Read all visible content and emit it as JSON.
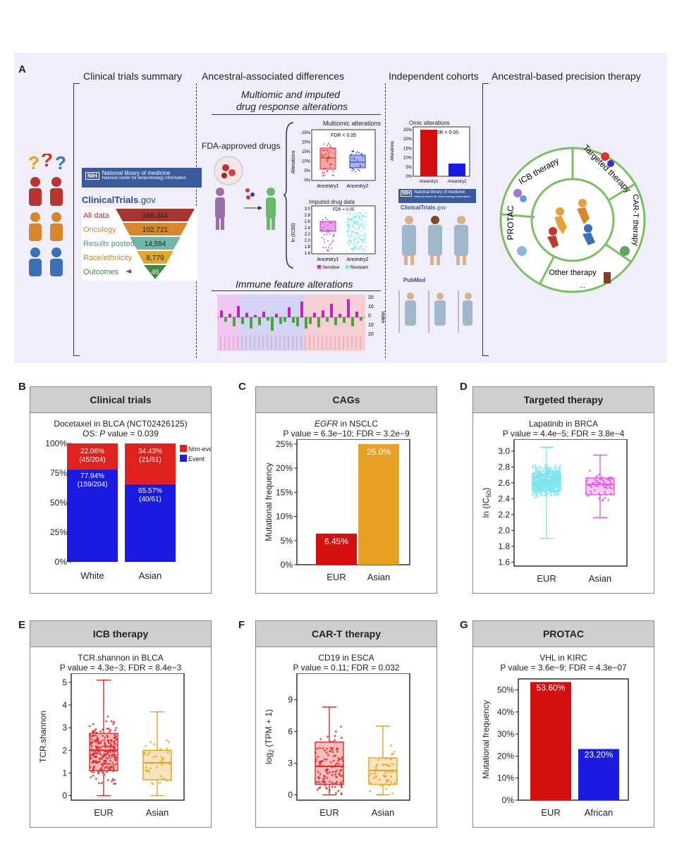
{
  "panel_a": {
    "letter": "A",
    "sections": {
      "clinical_trials_summary": "Clinical trials summary",
      "ancestral_differences": "Ancestral-associated differences",
      "independent_cohorts": "Independent cohorts",
      "precision_therapy": "Ancestral-based precision therapy"
    },
    "multiomic_title_line1": "Multiomic and imputed",
    "multiomic_title_line2": "drug response alterations",
    "fda_label": "FDA-approved drugs",
    "multiomic_alterations": "Multiomic alterations",
    "fdr_label": "FDR < 0.05",
    "fdr_label2": "FDR = 0.05",
    "alterations_axis": "Alterations",
    "pct_ticks": [
      "25%",
      "20%",
      "15%",
      "10%",
      "5%",
      "0%"
    ],
    "ancestry1": "Ancestry1",
    "ancestry2": "Ancestry2",
    "imputed_drug_data": "Imputed drug data",
    "ic50_axis": "ln (IC50)",
    "ic50_ticks": [
      "3.0",
      "2.8",
      "2.6",
      "2.4",
      "2.2",
      "2.0",
      "1.8",
      "1.6"
    ],
    "legend_sensitive": "Sensitive",
    "legend_resistant": "Resistant",
    "immune_title": "Immune feature alterations",
    "index_label": "Index",
    "immune_ticks": [
      "20",
      "10",
      "0",
      "10",
      "20"
    ],
    "nih_line1": "National library of medicine",
    "nih_line2": "National center for biotechnology information",
    "nih_badge": "NIH",
    "clinicaltrials_bold": "ClinicalTrials",
    "clinicaltrials_rest": ".gov",
    "funnel": [
      {
        "label": "All data",
        "value": "488,344",
        "color": "#a8342e"
      },
      {
        "label": "Oncology",
        "value": "102,721",
        "color": "#d6862c"
      },
      {
        "label": "Results posted",
        "value": "14,594",
        "color": "#6fb7a8"
      },
      {
        "label": "Race/ethnicity",
        "value": "8,779",
        "color": "#e0a92e"
      },
      {
        "label": "Outcomes",
        "value": "46",
        "color": "#3c8a3c"
      }
    ],
    "omic_alterations": "Omic alterations",
    "omic_fdr": "FDR < 0.05",
    "omic_ticks": [
      "25%",
      "20%",
      "15%",
      "10%",
      "5%",
      "0%"
    ],
    "pubmed": "PubMed",
    "wheel": {
      "icb": "ICB therapy",
      "targeted": "Targeted therapy",
      "cart": "CAR-T therapy",
      "protac": "PROTAC",
      "other": "Other therapy",
      "ellipsis": "..."
    }
  },
  "panel_b": {
    "letter": "B",
    "title": "Clinical trials",
    "subtitle1": "Docetaxel in BLCA (NCT02426125)",
    "subtitle2_prefix": "OS: ",
    "subtitle2_p": "P",
    "subtitle2_rest": " value = 0.039",
    "colors": {
      "non_event": "#e0221e",
      "event": "#1a1ae0"
    },
    "chart_data": {
      "type": "bar",
      "stacked": true,
      "categories": [
        "White",
        "Asian"
      ],
      "series": [
        {
          "name": "Event",
          "values": [
            77.94,
            65.57
          ],
          "labels": [
            "77.94%",
            "65.57%"
          ],
          "counts": [
            "(159/204)",
            "(40/61)"
          ]
        },
        {
          "name": "Non-event",
          "values": [
            22.06,
            34.43
          ],
          "labels": [
            "22.06%",
            "34.43%"
          ],
          "counts": [
            "(45/204)",
            "(21/61)"
          ]
        }
      ],
      "yticks": [
        "0%",
        "25%",
        "50%",
        "75%",
        "100%"
      ],
      "ylim": [
        0,
        100
      ],
      "legend": [
        "Non-event",
        "Event"
      ]
    }
  },
  "panel_c": {
    "letter": "C",
    "title": "CAGs",
    "gene": "EGFR",
    "subtitle1_rest": " in NSCLC",
    "subtitle2": "P value = 6.3e−10; FDR = 3.2e−9",
    "ylabel": "Mutational frequency",
    "color": "#e6a126",
    "eur_color": "#d40f0f",
    "chart_data": {
      "type": "bar",
      "categories": [
        "EUR",
        "Asian"
      ],
      "values": [
        6.45,
        25.0
      ],
      "labels": [
        "6.45%",
        "25.0%"
      ],
      "yticks": [
        "0%",
        "5%",
        "10%",
        "15%",
        "20%",
        "25%"
      ],
      "ylim": [
        0,
        26
      ]
    }
  },
  "panel_d": {
    "letter": "D",
    "title": "Targeted therapy",
    "subtitle1": "Lapatinib in BRCA",
    "subtitle2": "P value = 4.4e−5; FDR = 3.8e−4",
    "ylabel": "ln (IC50)",
    "chart_data": {
      "type": "box",
      "categories": [
        "EUR",
        "Asian"
      ],
      "colors": [
        "#7fe5f0",
        "#e05ae0"
      ],
      "boxes": [
        {
          "min": 1.9,
          "q1": 2.5,
          "median": 2.62,
          "q3": 2.72,
          "max": 3.05
        },
        {
          "min": 2.16,
          "q1": 2.45,
          "median": 2.58,
          "q3": 2.66,
          "max": 2.95
        }
      ],
      "yticks": [
        "1.6",
        "1.8",
        "2.0",
        "2.2",
        "2.4",
        "2.6",
        "2.8",
        "3.0"
      ],
      "ylim": [
        1.55,
        3.15
      ]
    }
  },
  "panel_e": {
    "letter": "E",
    "title": "ICB therapy",
    "subtitle1": "TCR.shannon in BLCA",
    "subtitle2": "P value = 4.3e−3; FDR = 8.4e−3",
    "ylabel": "TCR.shannon",
    "chart_data": {
      "type": "box",
      "categories": [
        "EUR",
        "Asian"
      ],
      "colors": [
        "#e02a2a",
        "#e6a126"
      ],
      "boxes": [
        {
          "min": 0,
          "q1": 1.1,
          "median": 2.0,
          "q3": 2.75,
          "max": 5.1
        },
        {
          "min": 0,
          "q1": 0.7,
          "median": 1.45,
          "q3": 2.0,
          "max": 3.7
        }
      ],
      "yticks": [
        "0",
        "1",
        "2",
        "3",
        "4",
        "5"
      ],
      "ylim": [
        -0.2,
        5.4
      ]
    }
  },
  "panel_f": {
    "letter": "F",
    "title": "CAR-T therapy",
    "subtitle1": "CD19 in ESCA",
    "subtitle2": "P value = 0.11; FDR = 0.032",
    "ylabel": "log2 (TPM + 1)",
    "chart_data": {
      "type": "box",
      "categories": [
        "EUR",
        "Asian"
      ],
      "colors": [
        "#e02a2a",
        "#e6a126"
      ],
      "boxes": [
        {
          "min": 0,
          "q1": 1.0,
          "median": 2.7,
          "q3": 5.0,
          "max": 8.3
        },
        {
          "min": 0,
          "q1": 1.0,
          "median": 2.3,
          "q3": 3.5,
          "max": 6.5
        }
      ],
      "yticks": [
        "0",
        "3",
        "6",
        "9"
      ],
      "ylim": [
        -0.5,
        11.5
      ]
    }
  },
  "panel_g": {
    "letter": "G",
    "title": "PROTAC",
    "subtitle1": "VHL in KIRC",
    "subtitle2": "P value = 3.6e−9; FDR = 4.3e−07",
    "ylabel": "Mutational frequency",
    "chart_data": {
      "type": "bar",
      "categories": [
        "EUR",
        "African"
      ],
      "values": [
        53.6,
        23.2
      ],
      "labels": [
        "53.60%",
        "23.20%"
      ],
      "colors": [
        "#d40f0f",
        "#1a1ae0"
      ],
      "yticks": [
        "0%",
        "10%",
        "20%",
        "30%",
        "40%",
        "50%"
      ],
      "ylim": [
        0,
        55
      ]
    }
  }
}
